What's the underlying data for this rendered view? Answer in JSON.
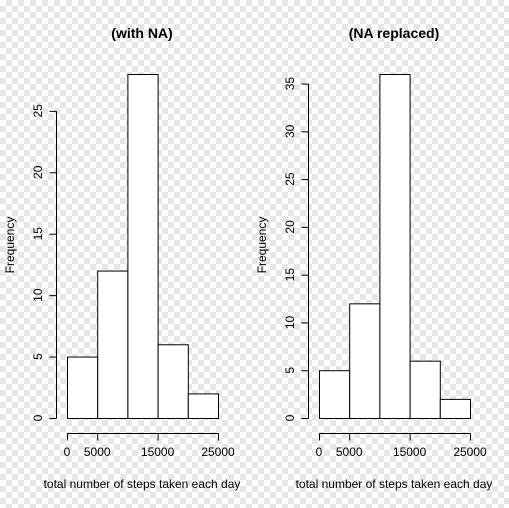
{
  "chart_data": [
    {
      "type": "bar",
      "title": "(with NA)",
      "xlabel": "total number of steps taken each day",
      "ylabel": "Frequency",
      "bins": [
        [
          0,
          5000
        ],
        [
          5000,
          10000
        ],
        [
          10000,
          15000
        ],
        [
          15000,
          20000
        ],
        [
          20000,
          25000
        ]
      ],
      "values": [
        5,
        12,
        28,
        6,
        2
      ],
      "x_ticks": [
        0,
        5000,
        15000,
        25000
      ],
      "x_tick_labels": [
        "0",
        "5000",
        "15000",
        "25000"
      ],
      "y_ticks": [
        0,
        5,
        10,
        15,
        20,
        25
      ],
      "y_tick_labels": [
        "0",
        "5",
        "10",
        "15",
        "20",
        "25"
      ],
      "xlim": [
        0,
        25000
      ],
      "ylim": [
        0,
        28
      ]
    },
    {
      "type": "bar",
      "title": "(NA replaced)",
      "xlabel": "total number of steps taken each day",
      "ylabel": "Frequency",
      "bins": [
        [
          0,
          5000
        ],
        [
          5000,
          10000
        ],
        [
          10000,
          15000
        ],
        [
          15000,
          20000
        ],
        [
          20000,
          25000
        ]
      ],
      "values": [
        5,
        12,
        36,
        6,
        2
      ],
      "x_ticks": [
        0,
        5000,
        15000,
        25000
      ],
      "x_tick_labels": [
        "0",
        "5000",
        "15000",
        "25000"
      ],
      "y_ticks": [
        0,
        5,
        10,
        15,
        20,
        25,
        30,
        35
      ],
      "y_tick_labels": [
        "0",
        "5",
        "10",
        "15",
        "20",
        "25",
        "30",
        "35"
      ],
      "xlim": [
        0,
        25000
      ],
      "ylim": [
        0,
        36
      ]
    }
  ],
  "colors": {
    "bar_fill": "#ffffff",
    "stroke": "#000000"
  }
}
